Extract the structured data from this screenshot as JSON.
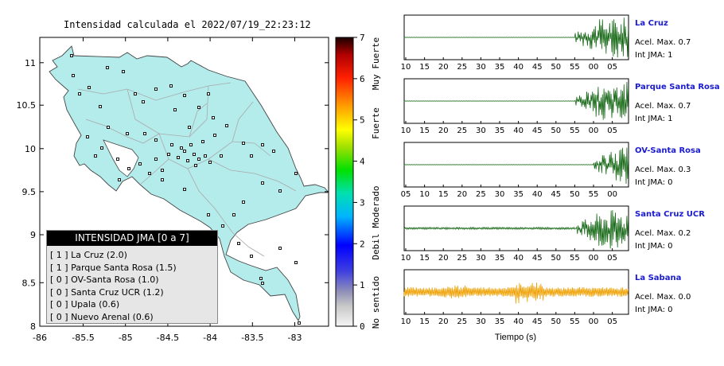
{
  "map": {
    "title": "Intensidad calculada el 2022/07/19_22:23:12",
    "x_ticks": [
      "-86",
      "-85.5",
      "-85",
      "-84.5",
      "-84",
      "-83.5",
      "-83"
    ],
    "y_ticks": [
      "11",
      "10.5",
      "10",
      "9.5",
      "9",
      "8.5",
      "8"
    ]
  },
  "legend": {
    "title": "INTENSIDAD JMA [0 a 7]",
    "items": [
      {
        "jma": "[ 1 ]",
        "name": "La Cruz (2.0)"
      },
      {
        "jma": "[ 1 ]",
        "name": "Parque Santa Rosa (1.5)"
      },
      {
        "jma": "[ 0 ]",
        "name": "OV-Santa Rosa (1.0)"
      },
      {
        "jma": "[ 0 ]",
        "name": "Santa Cruz UCR (1.2)"
      },
      {
        "jma": "[ 0 ]",
        "name": "Upala (0.6)"
      },
      {
        "jma": "[ 0 ]",
        "name": "Nuevo Arenal (0.6)"
      }
    ]
  },
  "colorbar": {
    "ticks": [
      "7",
      "6",
      "5",
      "4",
      "3",
      "2",
      "1",
      "0"
    ],
    "labels": [
      "Muy Fuerte",
      "Fuerte",
      "Moderado",
      "Debil",
      "No sentido"
    ]
  },
  "panels": [
    {
      "station": "La Cruz",
      "acel": "Acel. Max. 0.7",
      "int": "Int JMA: 1",
      "ticks": [
        "10",
        "15",
        "20",
        "25",
        "30",
        "35",
        "40",
        "45",
        "50",
        "55",
        "00",
        "05"
      ],
      "color": "#1a6b1a"
    },
    {
      "station": "Parque Santa Rosa",
      "acel": "Acel. Max. 0.7",
      "int": "Int JMA: 1",
      "ticks": [
        "10",
        "15",
        "20",
        "25",
        "30",
        "35",
        "40",
        "45",
        "50",
        "55",
        "00",
        "05"
      ],
      "color": "#1a6b1a"
    },
    {
      "station": "OV-Santa Rosa",
      "acel": "Acel. Max. 0.3",
      "int": "Int JMA: 0",
      "ticks": [
        "05",
        "10",
        "15",
        "20",
        "25",
        "30",
        "35",
        "40",
        "45",
        "50",
        "55",
        "00"
      ],
      "color": "#1a6b1a"
    },
    {
      "station": "Santa Cruz UCR",
      "acel": "Acel. Max. 0.2",
      "int": "Int JMA: 0",
      "ticks": [
        "10",
        "15",
        "20",
        "25",
        "30",
        "35",
        "40",
        "45",
        "50",
        "55",
        "00",
        "05"
      ],
      "color": "#1a6b1a"
    },
    {
      "station": "La Sabana",
      "acel": "Acel. Max. 0.0",
      "int": "Int JMA: 0",
      "ticks": [
        "10",
        "15",
        "20",
        "25",
        "30",
        "35",
        "40",
        "45",
        "50",
        "55",
        "00",
        "05"
      ],
      "color": "#f0a000"
    }
  ],
  "xlabel": "Tiempo (s)",
  "chart_data": [
    {
      "type": "heatmap",
      "title": "Intensidad calculada el 2022/07/19_22:23:12",
      "xlim": [
        -86,
        -82.6
      ],
      "ylim": [
        8,
        11.35
      ],
      "x_ticks": [
        -86,
        -85.5,
        -85,
        -84.5,
        -84,
        -83.5,
        -83
      ],
      "y_ticks": [
        8,
        8.5,
        9,
        9.5,
        10,
        10.5,
        11
      ],
      "colorbar_range": [
        0,
        7
      ],
      "colorbar_labels": [
        "Muy Fuerte",
        "Fuerte",
        "Moderado",
        "Debil",
        "No sentido"
      ],
      "mapped_intensity": 0,
      "legend": [
        "[ 1 ] La Cruz (2.0)",
        "[ 1 ] Parque Santa Rosa (1.5)",
        "[ 0 ] OV-Santa Rosa (1.0)",
        "[ 0 ] Santa Cruz UCR (1.2)",
        "[ 0 ] Upala (0.6)",
        "[ 0 ] Nuevo Arenal (0.6)"
      ]
    },
    {
      "type": "line",
      "xlabel": "Tiempo (s)",
      "series": [
        {
          "name": "La Cruz",
          "acel_max": 0.7,
          "int_jma": 1,
          "onset_tick": "55"
        },
        {
          "name": "Parque Santa Rosa",
          "acel_max": 0.7,
          "int_jma": 1,
          "onset_tick": "55"
        },
        {
          "name": "OV-Santa Rosa",
          "acel_max": 0.3,
          "int_jma": 0,
          "onset_tick": "55"
        },
        {
          "name": "Santa Cruz UCR",
          "acel_max": 0.2,
          "int_jma": 0,
          "onset_tick": "55"
        },
        {
          "name": "La Sabana",
          "acel_max": 0.0,
          "int_jma": 0,
          "onset_tick": "10"
        }
      ]
    }
  ]
}
